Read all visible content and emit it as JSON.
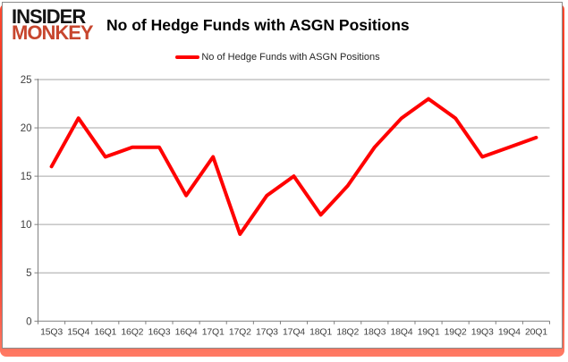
{
  "logo": {
    "line1": "INSIDER",
    "line2": "MONKEY"
  },
  "header": {
    "title": "No of Hedge Funds with ASGN Positions"
  },
  "legend": {
    "label": "No of Hedge Funds with ASGN Positions"
  },
  "colors": {
    "series_line": "#ff0000",
    "logo_black": "#141414",
    "logo_red": "#c7462e",
    "accent_bar": "#f21000",
    "card_border": "#8a8a8a",
    "gridline": "#a6a6a6",
    "axis_line": "#808080",
    "axis_label": "#404040"
  },
  "chart_data": {
    "type": "line",
    "title": "No of Hedge Funds with ASGN Positions",
    "series_name": "No of Hedge Funds with ASGN Positions",
    "categories": [
      "15Q3",
      "15Q4",
      "16Q1",
      "16Q2",
      "16Q3",
      "16Q4",
      "17Q1",
      "17Q2",
      "17Q3",
      "17Q4",
      "18Q1",
      "18Q2",
      "18Q3",
      "18Q4",
      "19Q1",
      "19Q2",
      "19Q3",
      "19Q4",
      "20Q1"
    ],
    "values": [
      16,
      21,
      17,
      18,
      18,
      13,
      17,
      9,
      13,
      15,
      11,
      14,
      18,
      21,
      23,
      21,
      17,
      18,
      19
    ],
    "ylim": [
      0,
      25
    ],
    "y_tick_step": 5,
    "y_tick_labels": [
      "0",
      "5",
      "10",
      "15",
      "20",
      "25"
    ],
    "grid": "horizontal",
    "legend_position": "top-center",
    "line_color": "#ff0000"
  }
}
